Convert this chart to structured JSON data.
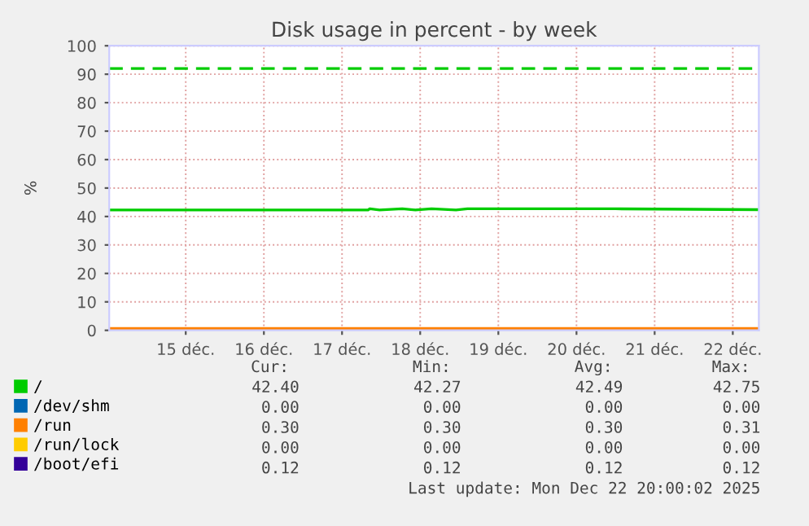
{
  "chart_data": {
    "type": "line",
    "title": "Disk usage in percent - by week",
    "ylabel": "%",
    "xlim": [
      "2025-12-14T12:30",
      "2025-12-22T20:00"
    ],
    "xticks": [
      {
        "value": "2025-12-15T12:00",
        "label": "15 déc."
      },
      {
        "value": "2025-12-16T12:00",
        "label": "16 déc."
      },
      {
        "value": "2025-12-17T12:00",
        "label": "17 déc."
      },
      {
        "value": "2025-12-18T12:00",
        "label": "18 déc."
      },
      {
        "value": "2025-12-19T12:00",
        "label": "19 déc."
      },
      {
        "value": "2025-12-20T12:00",
        "label": "20 déc."
      },
      {
        "value": "2025-12-21T12:00",
        "label": "21 déc."
      },
      {
        "value": "2025-12-22T12:00",
        "label": "22 déc."
      }
    ],
    "ylim": [
      0,
      100
    ],
    "yticks": [
      0,
      10,
      20,
      30,
      40,
      50,
      60,
      70,
      80,
      90,
      100
    ],
    "grid": true,
    "legend": "bottom left",
    "series": [
      {
        "name": "/",
        "color": "#00cc00",
        "x": [
          "2025-12-14T12:30",
          "2025-12-17T20:00",
          "2025-12-17T20:30",
          "2025-12-17T23:30",
          "2025-12-18T06:30",
          "2025-12-18T10:30",
          "2025-12-18T15:30",
          "2025-12-18T23:00",
          "2025-12-19T02:30",
          "2025-12-21T00:00",
          "2025-12-22T20:00"
        ],
        "values": [
          42.3,
          42.3,
          42.7,
          42.3,
          42.7,
          42.3,
          42.7,
          42.3,
          42.7,
          42.7,
          42.4
        ]
      },
      {
        "name": "/dev/shm",
        "color": "#0066b3"
      },
      {
        "name": "/run",
        "color": "#ff8000",
        "x": [
          "2025-12-14T12:30",
          "2025-12-22T20:00"
        ],
        "values": [
          0.3,
          0.3
        ]
      },
      {
        "name": "/run/lock",
        "color": "#ffcc00"
      },
      {
        "name": "/boot/efi",
        "color": "#330099"
      }
    ],
    "ref_lines": [
      {
        "axis": "y",
        "value": 92,
        "color": "#00cc00",
        "line_style": "dashed"
      }
    ],
    "annotations": [
      "Cur:",
      "Min:",
      "Avg:",
      "Max:",
      "42.40",
      "42.27",
      "42.49",
      "42.75",
      "0.00",
      "0.00",
      "0.00",
      "0.00",
      "0.30",
      "0.30",
      "0.30",
      "0.31",
      "0.00",
      "0.00",
      "0.00",
      "0.00",
      "0.12",
      "0.12",
      "0.12",
      "0.12",
      "Last update: Mon Dec 22 20:00:02 2025"
    ]
  }
}
